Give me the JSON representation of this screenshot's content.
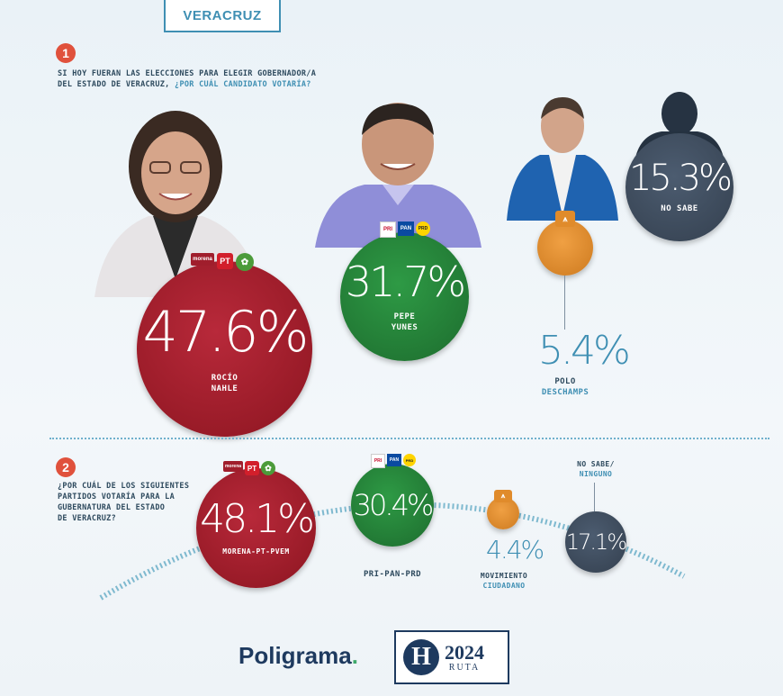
{
  "header": {
    "state_tab": "VERACRUZ"
  },
  "question1": {
    "number": "1",
    "line1": "SI HOY FUERAN LAS ELECCIONES PARA ELEGIR GOBERNADOR/A",
    "line2": "DEL ESTADO DE VERACRUZ,",
    "line2_hl": "¿POR CUÁL CANDIDATO VOTARÍA?"
  },
  "question2": {
    "number": "2",
    "lines": [
      "¿POR CUÁL DE LOS SIGUIENTES",
      "PARTIDOS VOTARÍA PARA LA",
      "GUBERNATURA DEL ESTADO",
      "DE VERACRUZ?"
    ]
  },
  "chart_data": [
    {
      "type": "bubble",
      "title": "SI HOY FUERAN LAS ELECCIONES PARA ELEGIR GOBERNADOR/A DEL ESTADO DE VERACRUZ, ¿POR CUÁL CANDIDATO VOTARÍA?",
      "unit": "%",
      "series": [
        {
          "label": "47.6%",
          "value": 47.6,
          "name_line1": "ROCÍO",
          "name_line2": "NAHLE",
          "party_logos": "MORENA-PT-PVEM",
          "color": "#a01e2c"
        },
        {
          "label": "31.7%",
          "value": 31.7,
          "name_line1": "PEPE",
          "name_line2": "YUNES",
          "party_logos": "PRI-PAN-PRD",
          "color": "#258a3a"
        },
        {
          "label": "5.4%",
          "value": 5.4,
          "name_line1": "POLO",
          "name_line2": "DESCHAMPS",
          "party_logos": "MC",
          "color": "#e08b2b"
        },
        {
          "label": "15.3%",
          "value": 15.3,
          "name_line1": "NO SABE",
          "name_line2": "",
          "color": "#3f4c5d"
        }
      ]
    },
    {
      "type": "bubble",
      "title": "¿POR CUÁL DE LOS SIGUIENTES PARTIDOS VOTARÍA PARA LA GUBERNATURA DEL ESTADO DE VERACRUZ?",
      "unit": "%",
      "series": [
        {
          "label": "48.1%",
          "value": 48.1,
          "name_line1": "MORENA-PT-PVEM",
          "name_line2": "",
          "color": "#a01e2c"
        },
        {
          "label": "30.4%",
          "value": 30.4,
          "name_line1": "PRI-PAN-PRD",
          "name_line2": "",
          "color": "#258a3a"
        },
        {
          "label": "4.4%",
          "value": 4.4,
          "name_line1": "MOVIMIENTO",
          "name_line2": "CIUDADANO",
          "color": "#e08b2b"
        },
        {
          "label": "17.1%",
          "value": 17.1,
          "name_line1": "NO SABE/",
          "name_line2": "NINGUNO",
          "color": "#3f4c5d"
        }
      ]
    }
  ],
  "logos": {
    "morena": "morena",
    "pt": "PT",
    "pan": "PAN",
    "pri": "PRI",
    "prd": "PRD",
    "poligrama": "Poligrama",
    "poligrama_dot": ".",
    "heraldo_h": "H",
    "ruta_year": "2024",
    "ruta_word": "RUTA"
  },
  "colors": {
    "accent_blue": "#3f8fb3",
    "accent_red": "#e0513c",
    "dark_slate": "#3f4c5d"
  },
  "icons": [
    "person-silhouette-icon",
    "mc-eagle-icon"
  ]
}
